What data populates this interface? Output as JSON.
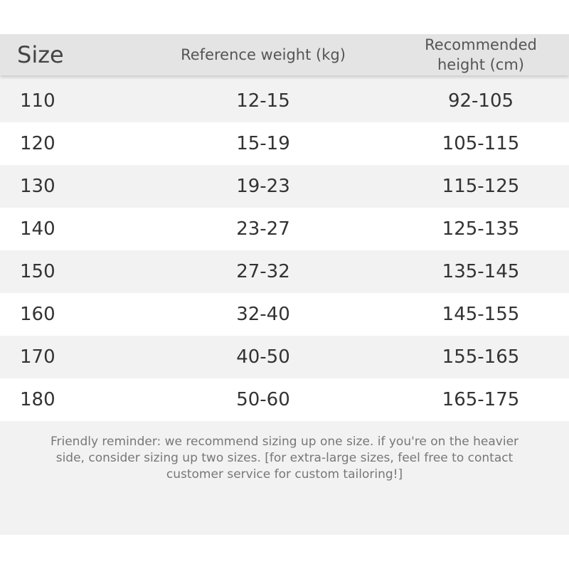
{
  "header": {
    "columns": [
      "Size",
      "Reference weight (kg)",
      "Recommended height (cm)"
    ]
  },
  "table": {
    "rows": [
      [
        "110",
        "12-15",
        "92-105"
      ],
      [
        "120",
        "15-19",
        "105-115"
      ],
      [
        "130",
        "19-23",
        "115-125"
      ],
      [
        "140",
        "23-27",
        "125-135"
      ],
      [
        "150",
        "27-32",
        "135-145"
      ],
      [
        "160",
        "32-40",
        "145-155"
      ],
      [
        "170",
        "40-50",
        "155-165"
      ],
      [
        "180",
        "50-60",
        "165-175"
      ]
    ]
  },
  "footer": {
    "lines": [
      "Friendly reminder: we recommend sizing up one size. if you're on the heavier",
      "side, consider sizing up two sizes. [for extra-large sizes, feel free to contact",
      "customer service for custom tailoring!]"
    ]
  }
}
